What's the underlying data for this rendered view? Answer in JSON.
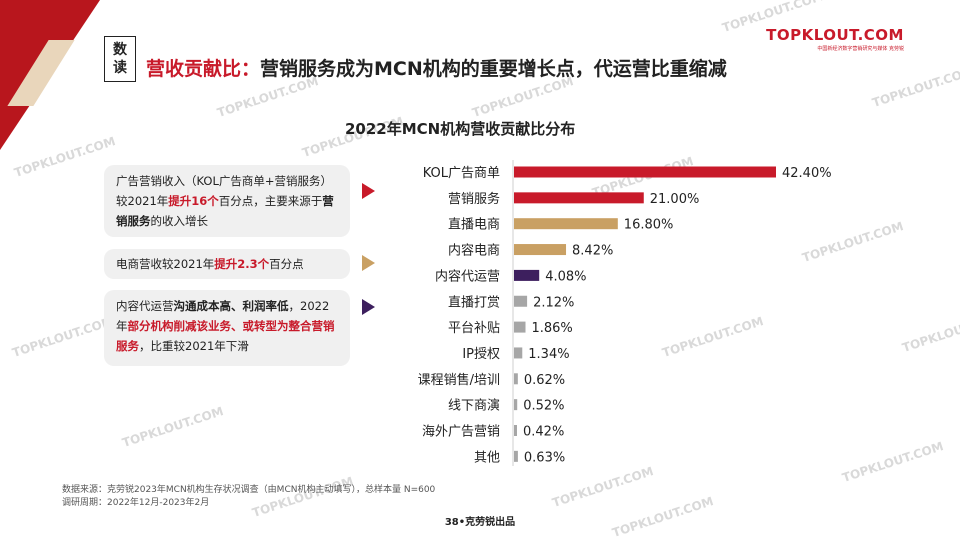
{
  "header": {
    "badge": [
      "数",
      "读"
    ],
    "title_prefix": "营收贡献比：",
    "title_main": "营销服务成为MCN机构的重要增长点，代运营比重缩减"
  },
  "logo": {
    "brand": "TOPKLOUT.COM",
    "sub": "中国新经济数字营销研究与媒体 克劳锐",
    "watermark": "TOPKLOUT.COM"
  },
  "callouts": [
    {
      "segments": [
        {
          "t": "广告营销收入（KOL广告商单+营销服务）较2021年"
        },
        {
          "t": "提升16个",
          "s": "hl"
        },
        {
          "t": "百分点，主要来源于"
        },
        {
          "t": "营销服务",
          "s": "b"
        },
        {
          "t": "的收入增长"
        }
      ]
    },
    {
      "segments": [
        {
          "t": "电商营收较2021年"
        },
        {
          "t": "提升2.3个",
          "s": "hl"
        },
        {
          "t": "百分点"
        }
      ]
    },
    {
      "segments": [
        {
          "t": "内容代运营"
        },
        {
          "t": "沟通成本高、利润率低",
          "s": "b"
        },
        {
          "t": "，2022年"
        },
        {
          "t": "部分机构削减该业务、或转型为整合营销服务",
          "s": "hl"
        },
        {
          "t": "，比重较2021年下滑"
        }
      ]
    }
  ],
  "chart_data": {
    "type": "bar",
    "orientation": "horizontal",
    "title": "2022年MCN机构营收贡献比分布",
    "categories": [
      "KOL广告商单",
      "营销服务",
      "直播电商",
      "内容电商",
      "内容代运营",
      "直播打赏",
      "平台补贴",
      "IP授权",
      "课程销售/培训",
      "线下商演",
      "海外广告营销",
      "其他"
    ],
    "values": [
      42.4,
      21.0,
      16.8,
      8.42,
      4.08,
      2.12,
      1.86,
      1.34,
      0.62,
      0.52,
      0.42,
      0.63
    ],
    "value_labels": [
      "42.40%",
      "21.00%",
      "16.80%",
      "8.42%",
      "4.08%",
      "2.12%",
      "1.86%",
      "1.34%",
      "0.62%",
      "0.52%",
      "0.42%",
      "0.63%"
    ],
    "colors": [
      "#c81a2a",
      "#c81a2a",
      "#c9a063",
      "#c9a063",
      "#3d1f5e",
      "#a6a6a6",
      "#a6a6a6",
      "#a6a6a6",
      "#a6a6a6",
      "#a6a6a6",
      "#a6a6a6",
      "#a6a6a6"
    ],
    "xlim": [
      0,
      42.4
    ],
    "grid": false,
    "legend": "none"
  },
  "footer": {
    "source": "数据来源：克劳锐2023年MCN机构生存状况调查（由MCN机构主动填写），总样本量 N=600",
    "period": "调研周期：2022年12月-2023年2月",
    "page": "38•克劳锐出品"
  },
  "colors": {
    "accent_red": "#c81a2a",
    "gold": "#c9a063",
    "purple": "#3d1f5e",
    "grey": "#a6a6a6"
  }
}
